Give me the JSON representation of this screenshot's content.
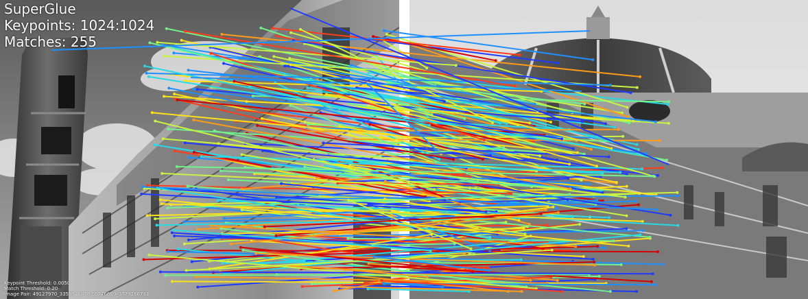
{
  "header": {
    "method": "SuperGlue",
    "keypoints_label": "Keypoints:",
    "keypoints_value": "1024:1024",
    "matches_label": "Matches:",
    "matches_value": "255"
  },
  "footer": {
    "keypoint_threshold": "Keypoint Threshold: 0.0050",
    "match_threshold": "Match Threshold: 0.20",
    "image_pair": "Image Pair: 49127970_3356341878:05246669_3779286731"
  },
  "colors": {
    "divider": "#ffffff",
    "text": "#ffffff",
    "colormap": [
      "#1f3bff",
      "#1f8fff",
      "#27d9e6",
      "#72f28a",
      "#c8f542",
      "#ffe11a",
      "#ff9b1a",
      "#ff3d1a",
      "#d40000"
    ]
  }
}
